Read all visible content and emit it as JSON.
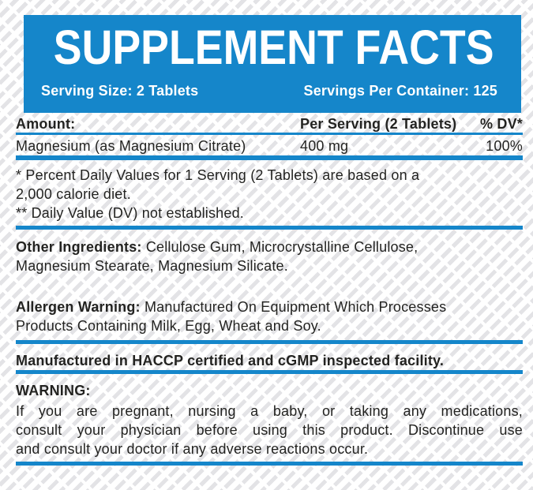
{
  "label": {
    "title": "SUPPLEMENT FACTS",
    "serving_size": "Serving Size: 2 Tablets",
    "servings_per_container": "Servings Per Container: 125",
    "table": {
      "headers": {
        "amount": "Amount:",
        "per_serving": "Per Serving (2 Tablets)",
        "dv": "% DV*"
      },
      "rows": [
        {
          "name": "Magnesium (as Magnesium Citrate)",
          "amount": "400 mg",
          "dv": "100%"
        }
      ]
    },
    "footnotes": {
      "line1": "* Percent Daily Values for 1 Serving (2 Tablets) are based on a",
      "line2": "2,000 calorie diet.",
      "line3": "** Daily Value (DV) not established."
    },
    "other_ingredients": {
      "label": "Other Ingredients:",
      "line1": "Cellulose Gum, Microcrystalline Cellulose,",
      "line2": "Magnesium Stearate, Magnesium Silicate."
    },
    "allergen": {
      "label": "Allergen Warning:",
      "line1": "Manufactured On Equipment Which Processes",
      "line2": "Products Containing Milk, Egg, Wheat and Soy."
    },
    "facility": "Manufactured in HACCP certified and cGMP inspected facility.",
    "warning": {
      "label": "WARNING:",
      "line1": "If you are pregnant, nursing a baby, or taking any medications,",
      "line2": "consult your physician before using this product. Discontinue use",
      "line3": "and consult your doctor if any adverse reactions occur."
    }
  },
  "colors": {
    "accent_blue": "#1586ca",
    "text": "#232321",
    "pattern_gray": "#e3e3e6",
    "title_text": "#ffffff"
  }
}
